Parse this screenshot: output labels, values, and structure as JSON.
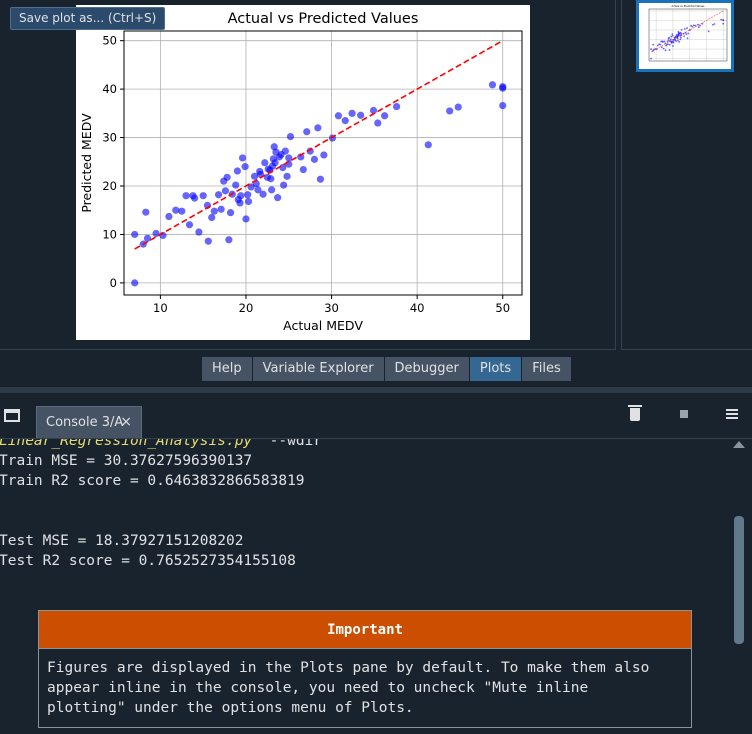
{
  "tooltip": "Save plot as... (Ctrl+S)",
  "chart_data": {
    "type": "scatter",
    "title": "Actual vs Predicted Values",
    "xlabel": "Actual MEDV",
    "ylabel": "Predicted MEDV",
    "xlim": [
      5.75,
      52.25
    ],
    "ylim": [
      -2.5,
      52
    ],
    "xticks": [
      10,
      20,
      30,
      40,
      50
    ],
    "yticks": [
      0,
      10,
      20,
      30,
      40,
      50
    ],
    "grid": true,
    "point_color": "#0000ff",
    "line_color": "#ff0000",
    "reference_line": {
      "x": [
        7,
        50
      ],
      "y": [
        7,
        50
      ],
      "style": "dashed"
    },
    "x": [
      7.0,
      7.0,
      8.0,
      8.3,
      8.5,
      9.5,
      10.3,
      11.0,
      11.8,
      12.5,
      13.0,
      13.4,
      13.8,
      14.0,
      14.5,
      15.0,
      15.5,
      15.6,
      16.0,
      16.3,
      16.8,
      17.1,
      17.4,
      17.6,
      17.8,
      18.0,
      18.2,
      18.4,
      18.8,
      19.0,
      19.1,
      19.3,
      19.4,
      19.6,
      19.9,
      20.0,
      20.2,
      20.3,
      20.6,
      21.0,
      21.2,
      21.4,
      21.6,
      21.7,
      22.0,
      22.2,
      22.5,
      22.6,
      22.8,
      22.9,
      23.0,
      23.1,
      23.2,
      23.3,
      23.4,
      23.5,
      23.7,
      23.9,
      24.1,
      24.3,
      24.4,
      24.6,
      24.8,
      25.0,
      25.0,
      25.2,
      26.4,
      26.7,
      27.1,
      27.5,
      28.0,
      28.4,
      28.7,
      29.1,
      30.1,
      30.8,
      31.6,
      32.4,
      33.4,
      34.9,
      35.4,
      36.2,
      37.6,
      41.3,
      43.8,
      44.8,
      48.8,
      50.0,
      50.0,
      50.0
    ],
    "y": [
      0.0,
      10.0,
      8.0,
      14.6,
      9.2,
      10.2,
      9.8,
      13.7,
      15.0,
      14.8,
      18.0,
      12.0,
      18.0,
      17.5,
      10.5,
      18.0,
      16.0,
      8.6,
      13.5,
      14.8,
      18.2,
      15.2,
      21.0,
      19.0,
      21.8,
      8.9,
      14.5,
      18.3,
      20.2,
      23.1,
      17.2,
      16.5,
      18.0,
      25.8,
      24.0,
      13.2,
      18.2,
      16.8,
      19.8,
      22.0,
      20.5,
      19.2,
      23.0,
      22.4,
      18.3,
      24.8,
      21.8,
      23.5,
      23.3,
      21.5,
      19.2,
      24.1,
      25.6,
      28.1,
      24.8,
      27.0,
      17.6,
      26.0,
      26.5,
      23.8,
      20.2,
      27.2,
      22.0,
      24.5,
      25.8,
      30.2,
      26.0,
      23.4,
      31.2,
      27.2,
      25.5,
      32.0,
      21.4,
      26.4,
      29.9,
      34.5,
      33.5,
      35.0,
      34.6,
      35.6,
      33.0,
      34.5,
      36.4,
      28.5,
      35.5,
      36.3,
      40.9,
      40.5,
      36.6,
      40.2
    ]
  },
  "pane_tabs": [
    {
      "label": "Help"
    },
    {
      "label": "Variable Explorer"
    },
    {
      "label": "Debugger"
    },
    {
      "label": "Plots"
    },
    {
      "label": "Files"
    }
  ],
  "console": {
    "tab_label": "Console 3/A",
    "tab_close": "×",
    "command_file": "Linear_Regression_Analysis.py",
    "command_rest": "  --wdir",
    "lines": [
      "Train MSE = 30.37627596390137",
      "Train R2 score = 0.6463832866583819",
      "",
      "",
      "Test MSE = 18.37927151208202",
      "Test R2 score = 0.7652527354155108"
    ]
  },
  "important": {
    "title": "Important",
    "lines": [
      "Figures are displayed in the Plots pane by default. To make them also",
      "appear inline in the console, you need to uncheck \"Mute inline",
      "plotting\" under the options menu of Plots."
    ]
  }
}
